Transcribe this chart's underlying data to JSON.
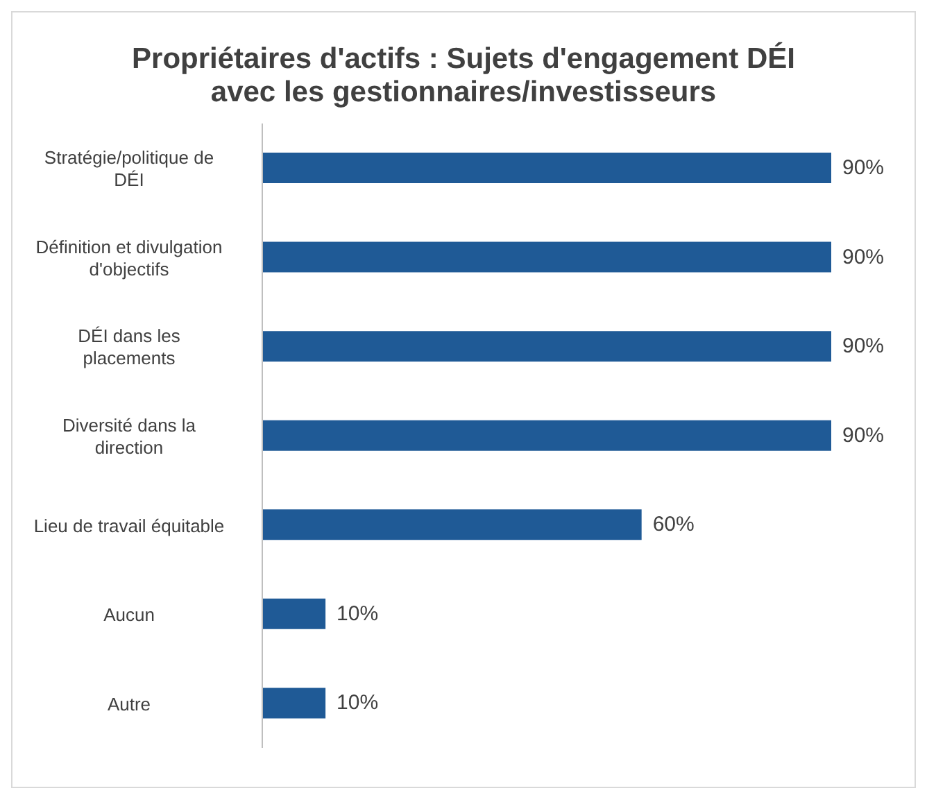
{
  "chart_data": {
    "type": "bar",
    "orientation": "horizontal",
    "title": "Propriétaires d'actifs : Sujets d'engagement DÉI avec les gestionnaires/investisseurs",
    "categories": [
      "Stratégie/politique de DÉI",
      "Définition et divulgation d'objectifs",
      "DÉI dans les placements",
      "Diversité dans la direction",
      "Lieu de travail équitable",
      "Aucun",
      "Autre"
    ],
    "values": [
      90,
      90,
      90,
      90,
      60,
      10,
      10
    ],
    "value_labels": [
      "90%",
      "90%",
      "90%",
      "90%",
      "60%",
      "10%",
      "10%"
    ],
    "color": "#1f5a96"
  }
}
